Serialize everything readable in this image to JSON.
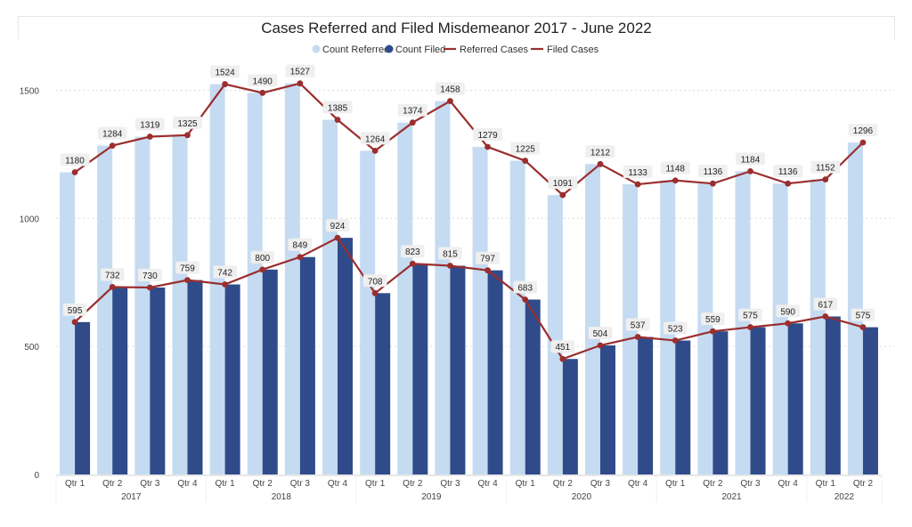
{
  "chart_data": {
    "type": "bar",
    "title": "Cases Referred and Filed Misdemeanor 2017 - June 2022",
    "categories": [
      "Qtr 1",
      "Qtr 2",
      "Qtr 3",
      "Qtr 4",
      "Qtr 1",
      "Qtr 2",
      "Qtr 3",
      "Qtr 4",
      "Qtr 1",
      "Qtr 2",
      "Qtr 3",
      "Qtr 4",
      "Qtr 1",
      "Qtr 2",
      "Qtr 3",
      "Qtr 4",
      "Qtr 1",
      "Qtr 2",
      "Qtr 3",
      "Qtr 4",
      "Qtr 1",
      "Qtr 2"
    ],
    "years": [
      {
        "label": "2017",
        "start": 0,
        "count": 4
      },
      {
        "label": "2018",
        "start": 4,
        "count": 4
      },
      {
        "label": "2019",
        "start": 8,
        "count": 4
      },
      {
        "label": "2020",
        "start": 12,
        "count": 4
      },
      {
        "label": "2021",
        "start": 16,
        "count": 4
      },
      {
        "label": "2022",
        "start": 20,
        "count": 2
      }
    ],
    "series": [
      {
        "name": "Count Referred",
        "kind": "bar",
        "color": "#c5dbf2",
        "values": [
          1180,
          1284,
          1319,
          1325,
          1524,
          1490,
          1527,
          1385,
          1264,
          1374,
          1458,
          1279,
          1225,
          1091,
          1212,
          1133,
          1148,
          1136,
          1184,
          1136,
          1152,
          1296
        ]
      },
      {
        "name": "Count Filed",
        "kind": "bar",
        "color": "#2f4b8a",
        "values": [
          595,
          732,
          730,
          759,
          742,
          800,
          849,
          924,
          708,
          823,
          815,
          797,
          683,
          451,
          504,
          537,
          523,
          559,
          575,
          590,
          617,
          575
        ]
      },
      {
        "name": "Referred Cases",
        "kind": "line",
        "color": "#9b2e2e",
        "values": [
          1180,
          1284,
          1319,
          1325,
          1524,
          1490,
          1527,
          1385,
          1264,
          1374,
          1458,
          1279,
          1225,
          1091,
          1212,
          1133,
          1148,
          1136,
          1184,
          1136,
          1152,
          1296
        ]
      },
      {
        "name": "Filed Cases",
        "kind": "line",
        "color": "#9b2e2e",
        "values": [
          595,
          732,
          730,
          759,
          742,
          800,
          849,
          924,
          708,
          823,
          815,
          797,
          683,
          451,
          504,
          537,
          523,
          559,
          575,
          590,
          617,
          575
        ]
      }
    ],
    "ylim": [
      0,
      1650
    ],
    "yticks": [
      0,
      500,
      1000,
      1500
    ],
    "grid": true,
    "legend": "top-center"
  }
}
